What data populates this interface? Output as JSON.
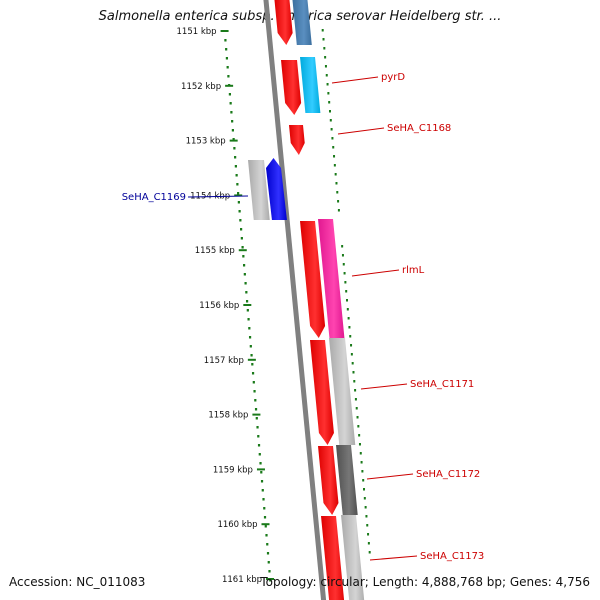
{
  "title": "Salmonella enterica subsp. enterica serovar Heidelberg str. ...",
  "footer": {
    "accession": "Accession: NC_011083",
    "summary": "Topology: circular; Length: 4,888,768 bp; Genes: 4,756"
  },
  "ruler": {
    "unit": "kbp",
    "ticks": [
      "1151 kbp",
      "1152 kbp",
      "1153 kbp",
      "1154 kbp",
      "1155 kbp",
      "1156 kbp",
      "1157 kbp",
      "1158 kbp",
      "1159 kbp",
      "1160 kbp",
      "1161 kbp"
    ]
  },
  "colors": {
    "backbone": "#808080",
    "ruler_dots": "#1a7a1a",
    "forward_label": "#cc0000",
    "reverse_label": "#000099"
  },
  "genes": [
    {
      "label": "",
      "strand": "+"
    },
    {
      "label": "pyrD",
      "strand": "+"
    },
    {
      "label": "SeHA_C1168",
      "strand": "+"
    },
    {
      "label": "SeHA_C1169",
      "strand": "-"
    },
    {
      "label": "rlmL",
      "strand": "+"
    },
    {
      "label": "SeHA_C1171",
      "strand": "+"
    },
    {
      "label": "SeHA_C1172",
      "strand": "+"
    },
    {
      "label": "SeHA_C1173",
      "strand": "+"
    }
  ]
}
